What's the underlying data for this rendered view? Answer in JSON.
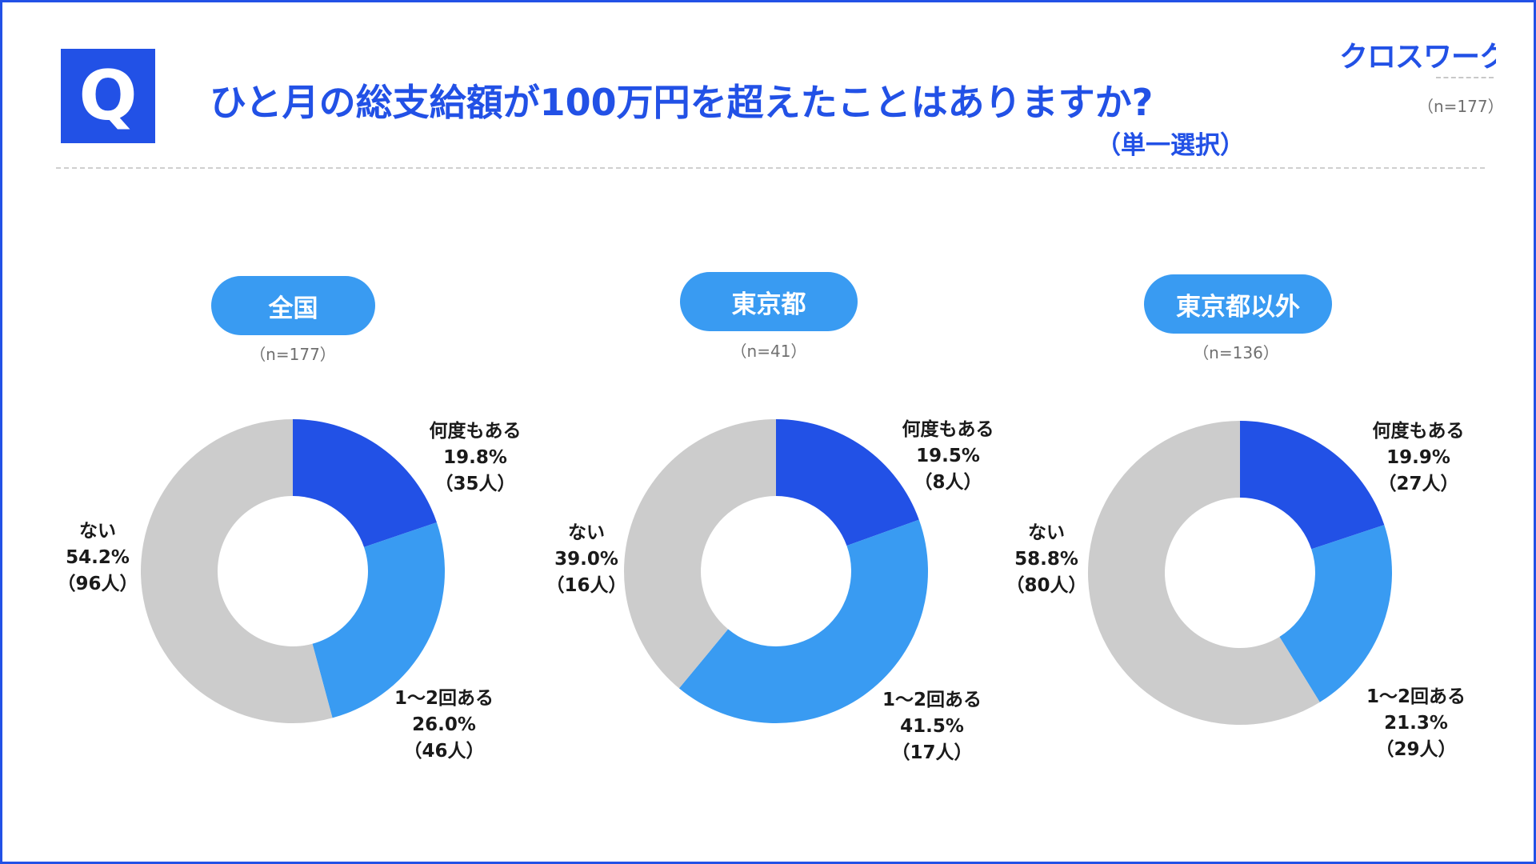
{
  "header": {
    "q_mark": "Q",
    "question": "ひと月の総支給額が100万円を超えたことはありますか?",
    "note": "（単一選択）",
    "logo_text": "クロスワーク",
    "total_n": "（n=177）"
  },
  "colors": {
    "accent": "#2251E6",
    "pill": "#399BF2",
    "slice_many": "#2251E6",
    "slice_few": "#399BF2",
    "slice_none": "#CCCCCC"
  },
  "chart_data": [
    {
      "type": "pie",
      "group": "全国",
      "n_label": "（n=177）",
      "slices": [
        {
          "label": "何度もある",
          "pct_text": "19.8%",
          "count_text": "（35人）",
          "value": 19.8
        },
        {
          "label": "1〜2回ある",
          "pct_text": "26.0%",
          "count_text": "（46人）",
          "value": 26.0
        },
        {
          "label": "ない",
          "pct_text": "54.2%",
          "count_text": "（96人）",
          "value": 54.2
        }
      ]
    },
    {
      "type": "pie",
      "group": "東京都",
      "n_label": "（n=41）",
      "slices": [
        {
          "label": "何度もある",
          "pct_text": "19.5%",
          "count_text": "（8人）",
          "value": 19.5
        },
        {
          "label": "1〜2回ある",
          "pct_text": "41.5%",
          "count_text": "（17人）",
          "value": 41.5
        },
        {
          "label": "ない",
          "pct_text": "39.0%",
          "count_text": "（16人）",
          "value": 39.0
        }
      ]
    },
    {
      "type": "pie",
      "group": "東京都以外",
      "n_label": "（n=136）",
      "slices": [
        {
          "label": "何度もある",
          "pct_text": "19.9%",
          "count_text": "（27人）",
          "value": 19.9
        },
        {
          "label": "1〜2回ある",
          "pct_text": "21.3%",
          "count_text": "（29人）",
          "value": 21.3
        },
        {
          "label": "ない",
          "pct_text": "58.8%",
          "count_text": "（80人）",
          "value": 58.8
        }
      ]
    }
  ]
}
